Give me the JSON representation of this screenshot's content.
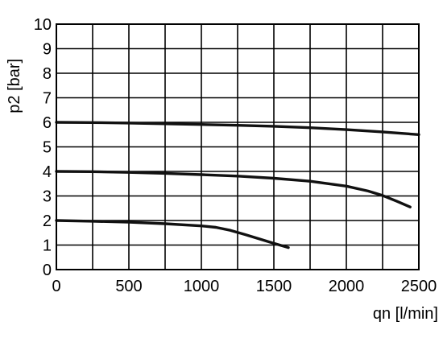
{
  "chart_data": {
    "type": "line",
    "title": "",
    "xlabel": "qn [l/min]",
    "ylabel": "p2 [bar]",
    "xlim": [
      0,
      2500
    ],
    "ylim": [
      0,
      10
    ],
    "grid": true,
    "x_ticks": [
      {
        "value": 0,
        "label": "0"
      },
      {
        "value": 500,
        "label": "500"
      },
      {
        "value": 1000,
        "label": "1000"
      },
      {
        "value": 1500,
        "label": "1500"
      },
      {
        "value": 2000,
        "label": "2000"
      },
      {
        "value": 2500,
        "label": "2500"
      }
    ],
    "y_ticks": [
      {
        "value": 0,
        "label": "0"
      },
      {
        "value": 1,
        "label": "1"
      },
      {
        "value": 2,
        "label": "2"
      },
      {
        "value": 3,
        "label": "3"
      },
      {
        "value": 4,
        "label": "4"
      },
      {
        "value": 5,
        "label": "5"
      },
      {
        "value": 6,
        "label": "6"
      },
      {
        "value": 7,
        "label": "7"
      },
      {
        "value": 8,
        "label": "8"
      },
      {
        "value": 9,
        "label": "9"
      },
      {
        "value": 10,
        "label": "10"
      }
    ],
    "series": [
      {
        "x": [
          0,
          250,
          500,
          750,
          1000,
          1250,
          1500,
          1750,
          2000,
          2250,
          2500
        ],
        "y": [
          6.0,
          5.99,
          5.97,
          5.94,
          5.91,
          5.88,
          5.84,
          5.78,
          5.7,
          5.61,
          5.5
        ]
      },
      {
        "x": [
          0,
          250,
          500,
          750,
          1000,
          1250,
          1500,
          1750,
          2000,
          2150,
          2250,
          2350,
          2440
        ],
        "y": [
          4.0,
          3.99,
          3.96,
          3.92,
          3.87,
          3.81,
          3.72,
          3.6,
          3.4,
          3.2,
          3.02,
          2.78,
          2.55
        ]
      },
      {
        "x": [
          0,
          250,
          500,
          750,
          1000,
          1100,
          1200,
          1300,
          1400,
          1500,
          1600
        ],
        "y": [
          2.0,
          1.97,
          1.93,
          1.87,
          1.78,
          1.72,
          1.6,
          1.43,
          1.25,
          1.07,
          0.9
        ]
      }
    ]
  }
}
